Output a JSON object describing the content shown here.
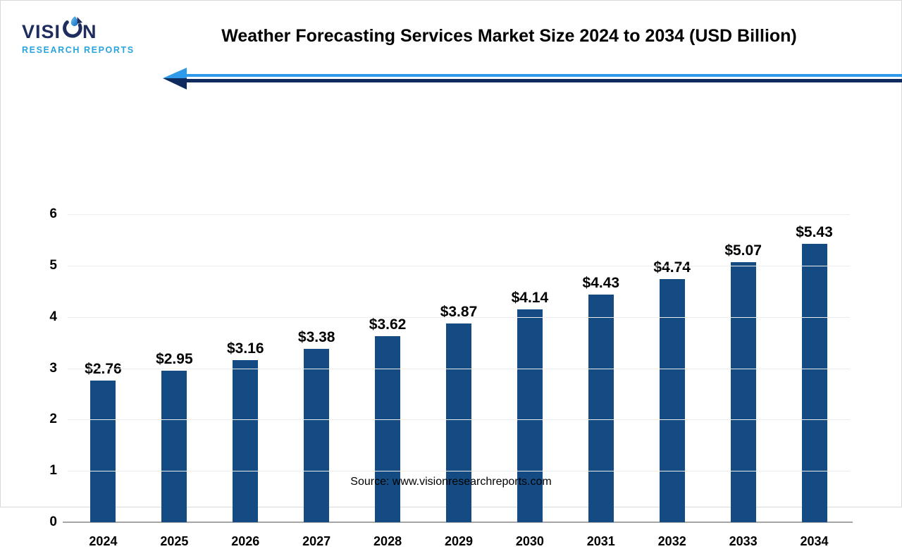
{
  "logo": {
    "text_prefix": "VISI",
    "text_suffix": "N",
    "subtitle": "RESEARCH REPORTS"
  },
  "header": {
    "title": "Weather Forecasting Services Market Size 2024 to 2034 (USD Billion)"
  },
  "footer": {
    "source": "Source: www.visionresearchreports.com"
  },
  "colors": {
    "bar": "#134B82",
    "gridline": "#EDEDED",
    "baseline": "#A6A6A6",
    "arrow_light": "#2E9BEA",
    "arrow_dark": "#0F2A5E",
    "logo_navy": "#1E2C5E",
    "logo_blue": "#2AA4DE"
  },
  "chart_data": {
    "type": "bar",
    "title": "Weather Forecasting Services Market Size 2024 to 2034 (USD Billion)",
    "categories": [
      "2024",
      "2025",
      "2026",
      "2027",
      "2028",
      "2029",
      "2030",
      "2031",
      "2032",
      "2033",
      "2034"
    ],
    "values": [
      2.76,
      2.95,
      3.16,
      3.38,
      3.62,
      3.87,
      4.14,
      4.43,
      4.74,
      5.07,
      5.43
    ],
    "value_labels": [
      "$2.76",
      "$2.95",
      "$3.16",
      "$3.38",
      "$3.62",
      "$3.87",
      "$4.14",
      "$4.43",
      "$4.74",
      "$5.07",
      "$5.43"
    ],
    "xlabel": "",
    "ylabel": "",
    "ylim": [
      0,
      6
    ],
    "yticks": [
      0,
      1,
      2,
      3,
      4,
      5,
      6
    ],
    "grid": true,
    "legend": false,
    "bar_color": "#134B82",
    "unit": "USD Billion"
  }
}
